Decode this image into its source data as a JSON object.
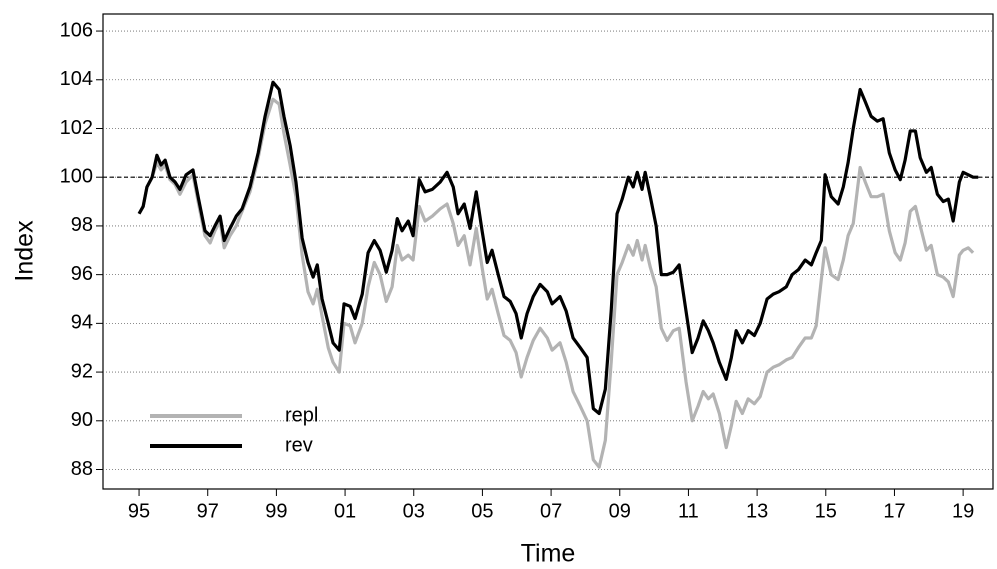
{
  "chart_data": {
    "type": "line",
    "x_label": "Time",
    "y_label": "Index",
    "x": [
      1995.0,
      1995.12,
      1995.23,
      1995.38,
      1995.52,
      1995.64,
      1995.76,
      1995.9,
      1996.05,
      1996.19,
      1996.37,
      1996.57,
      1996.72,
      1996.92,
      1997.07,
      1997.21,
      1997.36,
      1997.48,
      1997.65,
      1997.83,
      1998.0,
      1998.23,
      1998.47,
      1998.67,
      1998.9,
      1999.08,
      1999.22,
      1999.4,
      1999.57,
      1999.75,
      1999.92,
      2000.07,
      2000.19,
      2000.33,
      2000.51,
      2000.65,
      2000.83,
      2000.97,
      2001.15,
      2001.29,
      2001.5,
      2001.67,
      2001.85,
      2002.02,
      2002.2,
      2002.37,
      2002.52,
      2002.66,
      2002.84,
      2002.98,
      2003.16,
      2003.33,
      2003.54,
      2003.77,
      2003.97,
      2004.15,
      2004.29,
      2004.47,
      2004.64,
      2004.82,
      2004.99,
      2005.14,
      2005.28,
      2005.46,
      2005.63,
      2005.81,
      2005.98,
      2006.13,
      2006.3,
      2006.48,
      2006.68,
      2006.89,
      2007.03,
      2007.26,
      2007.44,
      2007.64,
      2007.85,
      2008.05,
      2008.23,
      2008.4,
      2008.58,
      2008.75,
      2008.92,
      2009.07,
      2009.25,
      2009.39,
      2009.51,
      2009.65,
      2009.74,
      2009.89,
      2010.06,
      2010.21,
      2010.38,
      2010.56,
      2010.73,
      2010.93,
      2011.11,
      2011.28,
      2011.43,
      2011.58,
      2011.72,
      2011.9,
      2012.1,
      2012.25,
      2012.39,
      2012.57,
      2012.74,
      2012.92,
      2013.09,
      2013.29,
      2013.47,
      2013.64,
      2013.85,
      2014.02,
      2014.2,
      2014.4,
      2014.58,
      2014.72,
      2014.87,
      2014.98,
      2015.16,
      2015.36,
      2015.51,
      2015.65,
      2015.8,
      2016.0,
      2016.15,
      2016.32,
      2016.5,
      2016.67,
      2016.85,
      2017.02,
      2017.17,
      2017.31,
      2017.46,
      2017.61,
      2017.75,
      2017.93,
      2018.07,
      2018.25,
      2018.42,
      2018.57,
      2018.71,
      2018.89,
      2019.0,
      2019.15,
      2019.29,
      2019.44
    ],
    "series": [
      {
        "name": "repl",
        "color": "#b3b3b3",
        "values": [
          98.5,
          98.8,
          99.6,
          100.0,
          100.6,
          100.3,
          100.5,
          99.9,
          99.7,
          99.3,
          99.8,
          100.1,
          99.0,
          97.6,
          97.3,
          97.8,
          98.2,
          97.1,
          97.6,
          98.0,
          98.6,
          99.4,
          100.8,
          102.2,
          103.2,
          103.0,
          101.8,
          100.5,
          99.2,
          96.8,
          95.3,
          94.8,
          95.4,
          94.3,
          93.0,
          92.4,
          92.0,
          94.0,
          93.9,
          93.2,
          94.0,
          95.5,
          96.5,
          96.0,
          94.9,
          95.5,
          97.2,
          96.6,
          96.8,
          96.6,
          98.8,
          98.2,
          98.4,
          98.7,
          98.9,
          98.1,
          97.2,
          97.6,
          96.4,
          97.9,
          96.3,
          95.0,
          95.4,
          94.4,
          93.5,
          93.3,
          92.8,
          91.8,
          92.6,
          93.3,
          93.8,
          93.4,
          92.9,
          93.2,
          92.4,
          91.2,
          90.6,
          90.0,
          88.4,
          88.1,
          89.2,
          92.4,
          96.0,
          96.5,
          97.2,
          96.8,
          97.4,
          96.6,
          97.2,
          96.3,
          95.5,
          93.8,
          93.3,
          93.7,
          93.8,
          91.6,
          90.0,
          90.6,
          91.2,
          90.9,
          91.1,
          90.3,
          88.9,
          89.8,
          90.8,
          90.3,
          90.9,
          90.7,
          91.0,
          92.0,
          92.2,
          92.3,
          92.5,
          92.6,
          93.0,
          93.4,
          93.4,
          93.9,
          95.8,
          97.1,
          96.0,
          95.8,
          96.6,
          97.6,
          98.1,
          100.4,
          99.8,
          99.2,
          99.2,
          99.3,
          97.8,
          96.9,
          96.6,
          97.3,
          98.6,
          98.8,
          98.0,
          97.0,
          97.2,
          96.0,
          95.9,
          95.7,
          95.1,
          96.8,
          97.0,
          97.1,
          96.9,
          null
        ]
      },
      {
        "name": "rev",
        "color": "#000000",
        "values": [
          98.5,
          98.8,
          99.6,
          100.0,
          100.9,
          100.5,
          100.7,
          100.0,
          99.8,
          99.5,
          100.1,
          100.3,
          99.2,
          97.8,
          97.6,
          98.0,
          98.4,
          97.4,
          97.9,
          98.4,
          98.7,
          99.6,
          101.0,
          102.5,
          103.9,
          103.6,
          102.5,
          101.3,
          99.8,
          97.5,
          96.5,
          95.9,
          96.4,
          95.0,
          94.0,
          93.2,
          92.9,
          94.8,
          94.7,
          94.2,
          95.2,
          96.9,
          97.4,
          97.0,
          96.1,
          97.0,
          98.3,
          97.8,
          98.2,
          97.6,
          99.9,
          99.4,
          99.5,
          99.8,
          100.2,
          99.6,
          98.5,
          98.9,
          97.9,
          99.4,
          97.8,
          96.5,
          97.0,
          96.0,
          95.1,
          94.9,
          94.4,
          93.4,
          94.4,
          95.1,
          95.6,
          95.3,
          94.8,
          95.1,
          94.5,
          93.4,
          93.0,
          92.6,
          90.5,
          90.3,
          91.3,
          94.5,
          98.5,
          99.1,
          100.0,
          99.6,
          100.2,
          99.5,
          100.2,
          99.2,
          98.0,
          96.0,
          96.0,
          96.1,
          96.4,
          94.5,
          92.8,
          93.4,
          94.1,
          93.7,
          93.2,
          92.4,
          91.7,
          92.6,
          93.7,
          93.2,
          93.7,
          93.5,
          94.0,
          95.0,
          95.2,
          95.3,
          95.5,
          96.0,
          96.2,
          96.6,
          96.4,
          96.9,
          97.4,
          100.1,
          99.2,
          98.9,
          99.6,
          100.6,
          102.0,
          103.6,
          103.1,
          102.5,
          102.3,
          102.4,
          101.0,
          100.3,
          99.9,
          100.7,
          101.9,
          101.9,
          100.8,
          100.2,
          100.4,
          99.3,
          99.0,
          99.1,
          98.2,
          99.8,
          100.2,
          100.1,
          100.0,
          100.0
        ]
      }
    ],
    "xlim": [
      1993.95,
      2019.87
    ],
    "ylim": [
      87.2,
      106.7
    ],
    "xticks": [
      {
        "value": 1995,
        "label": "95"
      },
      {
        "value": 1997,
        "label": "97"
      },
      {
        "value": 1999,
        "label": "99"
      },
      {
        "value": 2001,
        "label": "01"
      },
      {
        "value": 2003,
        "label": "03"
      },
      {
        "value": 2005,
        "label": "05"
      },
      {
        "value": 2007,
        "label": "07"
      },
      {
        "value": 2009,
        "label": "09"
      },
      {
        "value": 2011,
        "label": "11"
      },
      {
        "value": 2013,
        "label": "13"
      },
      {
        "value": 2015,
        "label": "15"
      },
      {
        "value": 2017,
        "label": "17"
      },
      {
        "value": 2019,
        "label": "19"
      }
    ],
    "yticks": [
      88,
      90,
      92,
      94,
      96,
      98,
      100,
      102,
      104,
      106
    ],
    "grid": true,
    "reference_line": 100,
    "legend": "bottom-left"
  }
}
